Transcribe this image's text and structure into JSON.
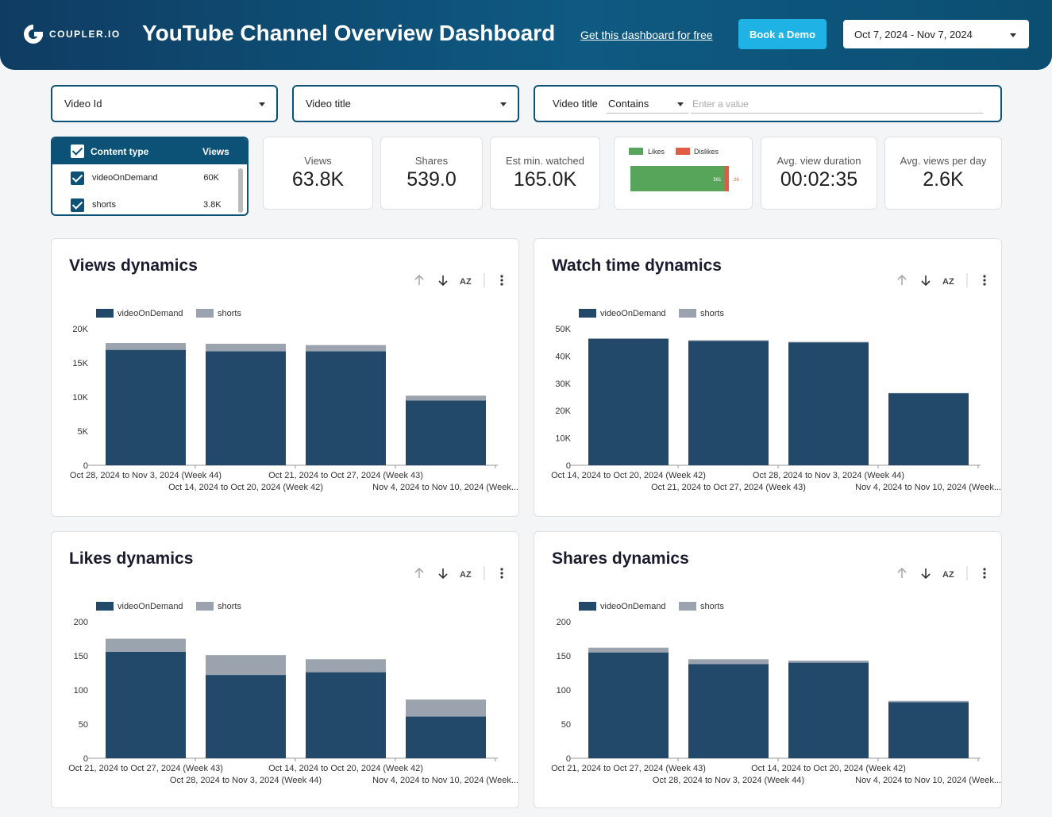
{
  "header": {
    "logo_text": "COUPLER.IO",
    "title": "YouTube Channel Overview Dashboard",
    "free_link": "Get this dashboard for free",
    "demo_button": "Book a Demo",
    "date_range": "Oct 7, 2024 - Nov 7, 2024"
  },
  "filters": {
    "video_id": "Video Id",
    "video_title": "Video title",
    "title_filter_label": "Video title",
    "title_filter_operator": "Contains",
    "title_filter_placeholder": "Enter a value"
  },
  "content_type": {
    "header_name": "Content type",
    "header_value": "Views",
    "rows": [
      {
        "name": "videoOnDemand",
        "value": "60K"
      },
      {
        "name": "shorts",
        "value": "3.8K"
      }
    ]
  },
  "kpis": [
    {
      "label": "Views",
      "value": "63.8K"
    },
    {
      "label": "Shares",
      "value": "539.0"
    },
    {
      "label": "Est min. watched",
      "value": "165.0K"
    },
    {
      "label": "Avg. view duration",
      "value": "00:02:35"
    },
    {
      "label": "Avg. views per day",
      "value": "2.6K"
    }
  ],
  "likes_dislikes": {
    "likes_label": "Likes",
    "dislikes_label": "Dislikes",
    "likes": 561,
    "dislikes": 26,
    "likes_color": "#57a55a",
    "dislikes_color": "#e05c45"
  },
  "colors": {
    "series1": "#23496a",
    "series2": "#9aa3ae",
    "accent": "#0c5176",
    "button": "#1fb3e5"
  },
  "icons": [
    "sort-ascending-icon",
    "sort-descending-icon",
    "sort-alpha-icon",
    "more-options-icon",
    "dropdown-caret-icon",
    "checkbox-icon"
  ],
  "chart_data": [
    {
      "type": "bar",
      "stacked": true,
      "title": "Views dynamics",
      "categories": [
        "Oct 28, 2024 to Nov 3, 2024 (Week 44)",
        "Oct 14, 2024 to Oct 20, 2024 (Week 42)",
        "Oct 21, 2024 to Oct 27, 2024 (Week 43)",
        "Nov 4, 2024 to Nov 10, 2024 (Week..."
      ],
      "series": [
        {
          "name": "videoOnDemand",
          "values": [
            16900,
            16700,
            16700,
            9500
          ]
        },
        {
          "name": "shorts",
          "values": [
            1000,
            1100,
            900,
            700
          ]
        }
      ],
      "ylim": [
        0,
        20000
      ],
      "yticks": [
        0,
        5000,
        10000,
        15000,
        20000
      ],
      "yticklabels": [
        "0",
        "5K",
        "10K",
        "15K",
        "20K"
      ]
    },
    {
      "type": "bar",
      "stacked": true,
      "title": "Watch time dynamics",
      "categories": [
        "Oct 14, 2024 to Oct 20, 2024 (Week 42)",
        "Oct 21, 2024 to Oct 27, 2024 (Week 43)",
        "Oct 28, 2024 to Nov 3, 2024 (Week 44)",
        "Nov 4, 2024 to Nov 10, 2024 (Week..."
      ],
      "series": [
        {
          "name": "videoOnDemand",
          "values": [
            46300,
            45500,
            45000,
            26400
          ]
        },
        {
          "name": "shorts",
          "values": [
            200,
            300,
            200,
            100
          ]
        }
      ],
      "ylim": [
        0,
        50000
      ],
      "yticks": [
        0,
        10000,
        20000,
        30000,
        40000,
        50000
      ],
      "yticklabels": [
        "0",
        "10K",
        "20K",
        "30K",
        "40K",
        "50K"
      ]
    },
    {
      "type": "bar",
      "stacked": true,
      "title": "Likes dynamics",
      "categories": [
        "Oct 21, 2024 to Oct 27, 2024 (Week 43)",
        "Oct 28, 2024 to Nov 3, 2024 (Week 44)",
        "Oct 14, 2024 to Oct 20, 2024 (Week 42)",
        "Nov 4, 2024 to Nov 10, 2024 (Week..."
      ],
      "series": [
        {
          "name": "videoOnDemand",
          "values": [
            156,
            122,
            126,
            61
          ]
        },
        {
          "name": "shorts",
          "values": [
            19,
            29,
            19,
            25
          ]
        }
      ],
      "ylim": [
        0,
        200
      ],
      "yticks": [
        0,
        50,
        100,
        150,
        200
      ],
      "yticklabels": [
        "0",
        "50",
        "100",
        "150",
        "200"
      ]
    },
    {
      "type": "bar",
      "stacked": true,
      "title": "Shares dynamics",
      "categories": [
        "Oct 21, 2024 to Oct 27, 2024 (Week 43)",
        "Oct 28, 2024 to Nov 3, 2024 (Week 44)",
        "Oct 14, 2024 to Oct 20, 2024 (Week 42)",
        "Nov 4, 2024 to Nov 10, 2024 (Week..."
      ],
      "series": [
        {
          "name": "videoOnDemand",
          "values": [
            155,
            138,
            140,
            82
          ]
        },
        {
          "name": "shorts",
          "values": [
            7,
            7,
            3,
            2
          ]
        }
      ],
      "ylim": [
        0,
        200
      ],
      "yticks": [
        0,
        50,
        100,
        150,
        200
      ],
      "yticklabels": [
        "0",
        "50",
        "100",
        "150",
        "200"
      ]
    }
  ]
}
